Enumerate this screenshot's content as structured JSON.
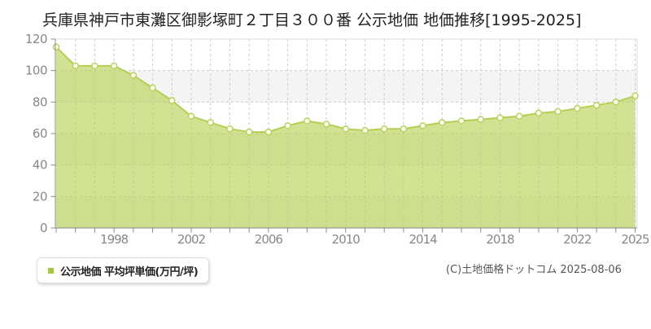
{
  "title": "兵庫県神戸市東灘区御影塚町２丁目３００番 公示地価 地価推移[1995-2025]",
  "legend": {
    "label": "公示地価 平均坪単価(万円/坪)",
    "marker_color": "#a3c93c"
  },
  "footer": {
    "copyright": "(C)土地価格ドットコム 2025-08-06"
  },
  "chart_data": {
    "type": "area",
    "title": "兵庫県神戸市東灘区御影塚町２丁目３００番 公示地価 地価推移[1995-2025]",
    "xlabel": "",
    "ylabel": "平均坪単価(万円/坪)",
    "x": [
      1995,
      1996,
      1997,
      1998,
      1999,
      2000,
      2001,
      2002,
      2003,
      2004,
      2005,
      2006,
      2007,
      2008,
      2009,
      2010,
      2011,
      2012,
      2013,
      2014,
      2015,
      2016,
      2017,
      2018,
      2019,
      2020,
      2021,
      2022,
      2023,
      2024,
      2025
    ],
    "series": [
      {
        "name": "公示地価 平均坪単価(万円/坪)",
        "values": [
          115,
          103,
          103,
          103,
          97,
          89,
          81,
          71,
          67,
          63,
          61,
          61,
          65,
          68,
          66,
          63,
          62,
          63,
          63,
          65,
          67,
          68,
          69,
          70,
          71,
          73,
          74,
          76,
          78,
          80,
          84
        ]
      }
    ],
    "ylim": [
      0,
      120
    ],
    "ytick_interval": 20,
    "ytick_labels": [
      "0",
      "20",
      "40",
      "60",
      "80",
      "100",
      "120"
    ],
    "xtick_labels": [
      "1998",
      "2002",
      "2006",
      "2010",
      "2014",
      "2018",
      "2022",
      "2025"
    ],
    "grid": true,
    "legend_position": "bottom-left",
    "colors": {
      "area_fill": "#bad359",
      "area_opacity": "0.65",
      "line": "#b3cf52",
      "marker_fill": "#fffef4",
      "marker_stroke": "#b9d35e",
      "grid": "#cccccc",
      "band_gray": "#f4f4f4",
      "band_white": "#ffffff",
      "plot_border": "#dddddd",
      "axis": "#888888",
      "tick_label": "#888888"
    }
  }
}
